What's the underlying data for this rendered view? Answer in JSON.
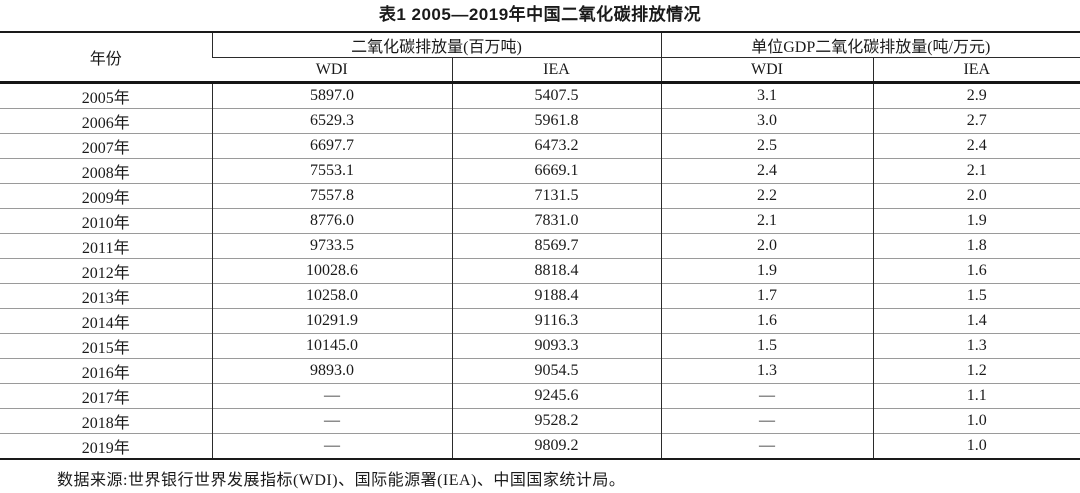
{
  "page": {
    "title": "表1 2005—2019年中国二氧化碳排放情况",
    "footnote": "数据来源:世界银行世界发展指标(WDI)、国际能源署(IEA)、中国国家统计局。"
  },
  "table": {
    "header": {
      "year": "年份",
      "co2_group": "二氧化碳排放量(百万吨)",
      "intensity_group": "单位GDP二氧化碳排放量(吨/万元)",
      "co2_wdi": "WDI",
      "co2_iea": "IEA",
      "intensity_wdi": "WDI",
      "intensity_iea": "IEA"
    },
    "rows": [
      {
        "year": "2005年",
        "co2_wdi": "5897.0",
        "co2_iea": "5407.5",
        "int_wdi": "3.1",
        "int_iea": "2.9"
      },
      {
        "year": "2006年",
        "co2_wdi": "6529.3",
        "co2_iea": "5961.8",
        "int_wdi": "3.0",
        "int_iea": "2.7"
      },
      {
        "year": "2007年",
        "co2_wdi": "6697.7",
        "co2_iea": "6473.2",
        "int_wdi": "2.5",
        "int_iea": "2.4"
      },
      {
        "year": "2008年",
        "co2_wdi": "7553.1",
        "co2_iea": "6669.1",
        "int_wdi": "2.4",
        "int_iea": "2.1"
      },
      {
        "year": "2009年",
        "co2_wdi": "7557.8",
        "co2_iea": "7131.5",
        "int_wdi": "2.2",
        "int_iea": "2.0"
      },
      {
        "year": "2010年",
        "co2_wdi": "8776.0",
        "co2_iea": "7831.0",
        "int_wdi": "2.1",
        "int_iea": "1.9"
      },
      {
        "year": "2011年",
        "co2_wdi": "9733.5",
        "co2_iea": "8569.7",
        "int_wdi": "2.0",
        "int_iea": "1.8"
      },
      {
        "year": "2012年",
        "co2_wdi": "10028.6",
        "co2_iea": "8818.4",
        "int_wdi": "1.9",
        "int_iea": "1.6"
      },
      {
        "year": "2013年",
        "co2_wdi": "10258.0",
        "co2_iea": "9188.4",
        "int_wdi": "1.7",
        "int_iea": "1.5"
      },
      {
        "year": "2014年",
        "co2_wdi": "10291.9",
        "co2_iea": "9116.3",
        "int_wdi": "1.6",
        "int_iea": "1.4"
      },
      {
        "year": "2015年",
        "co2_wdi": "10145.0",
        "co2_iea": "9093.3",
        "int_wdi": "1.5",
        "int_iea": "1.3"
      },
      {
        "year": "2016年",
        "co2_wdi": "9893.0",
        "co2_iea": "9054.5",
        "int_wdi": "1.3",
        "int_iea": "1.2"
      },
      {
        "year": "2017年",
        "co2_wdi": "—",
        "co2_iea": "9245.6",
        "int_wdi": "—",
        "int_iea": "1.1"
      },
      {
        "year": "2018年",
        "co2_wdi": "—",
        "co2_iea": "9528.2",
        "int_wdi": "—",
        "int_iea": "1.0"
      },
      {
        "year": "2019年",
        "co2_wdi": "—",
        "co2_iea": "9809.2",
        "int_wdi": "—",
        "int_iea": "1.0"
      }
    ]
  },
  "colors": {
    "background": "#ffffff",
    "text": "#1a1a1a",
    "heavy_rule": "#151515",
    "column_rule": "#2b2b2b",
    "light_rule": "#9a9a9a"
  }
}
